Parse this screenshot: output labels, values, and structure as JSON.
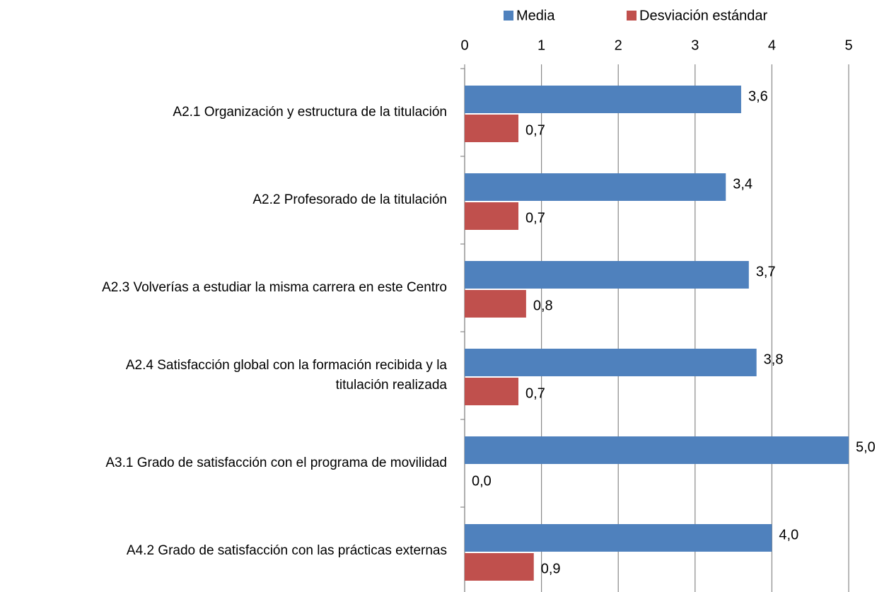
{
  "chart_data": {
    "type": "bar",
    "orientation": "horizontal",
    "categories": [
      "A2.1 Organización y estructura de la titulación",
      "A2.2 Profesorado de la titulación",
      "A2.3 Volverías a estudiar la misma carrera en este Centro",
      "A2.4 Satisfacción global con la formación recibida y la\ntitulación realizada",
      "A3.1 Grado de satisfacción con el programa de movilidad",
      "A4.2 Grado de satisfacción con las prácticas externas"
    ],
    "series": [
      {
        "name": "Media",
        "color": "#4f81bd",
        "values": [
          3.6,
          3.4,
          3.7,
          3.8,
          5.0,
          4.0
        ],
        "value_labels": [
          "3,6",
          "3,4",
          "3,7",
          "3,8",
          "5,0",
          "4,0"
        ]
      },
      {
        "name": "Desviación estándar",
        "color": "#c0504d",
        "values": [
          0.7,
          0.7,
          0.8,
          0.7,
          0.0,
          0.9
        ],
        "value_labels": [
          "0,7",
          "0,7",
          "0,8",
          "0,7",
          "0,0",
          "0,9"
        ]
      }
    ],
    "xlim": [
      0,
      5
    ],
    "xticks": [
      0,
      1,
      2,
      3,
      4,
      5
    ],
    "grid": true,
    "legend": "top"
  }
}
